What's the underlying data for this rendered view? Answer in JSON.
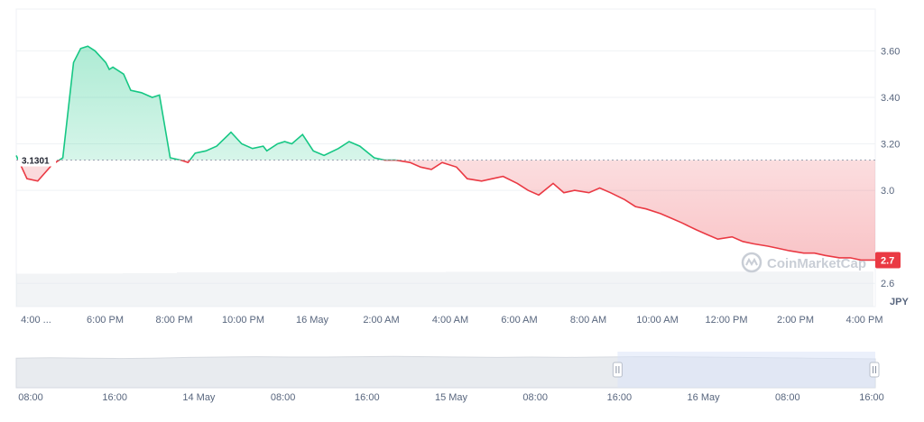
{
  "chart_data": {
    "type": "line",
    "unit": "JPY",
    "baseline": 3.1301,
    "baseline_label": "3.1301",
    "last_price_label": "2.7",
    "ylim": [
      2.5,
      3.78
    ],
    "y_ticks": [
      {
        "value": 3.6,
        "label": "3.60"
      },
      {
        "value": 3.4,
        "label": "3.40"
      },
      {
        "value": 3.2,
        "label": "3.20"
      },
      {
        "value": 3.0,
        "label": "3.0"
      },
      {
        "value": 2.6,
        "label": "2.6"
      }
    ],
    "x_ticks": [
      "4:00 ...",
      "6:00 PM",
      "8:00 PM",
      "10:00 PM",
      "16 May",
      "2:00 AM",
      "4:00 AM",
      "6:00 AM",
      "8:00 AM",
      "10:00 AM",
      "12:00 PM",
      "2:00 PM",
      "4:00 PM"
    ],
    "x_hours": [
      0,
      24
    ],
    "series": [
      {
        "hours": [
          0,
          0.3,
          0.6,
          1.0,
          1.3,
          1.6,
          1.8,
          2.0,
          2.2,
          2.5,
          2.6,
          2.7,
          3.0,
          3.2,
          3.5,
          3.8,
          4.0,
          4.3,
          4.6,
          4.8,
          5.0,
          5.3,
          5.6,
          6.0,
          6.3,
          6.6,
          6.9,
          7.0,
          7.3,
          7.5,
          7.7,
          8.0,
          8.3,
          8.6,
          9.0,
          9.3,
          9.6,
          10.0,
          10.3,
          10.6,
          11.0,
          11.3,
          11.6,
          11.9,
          12.3,
          12.6,
          13.0,
          13.3,
          13.6,
          14.0,
          14.3,
          14.6,
          15.0,
          15.3,
          15.6,
          16.0,
          16.3,
          16.6,
          17.0,
          17.3,
          17.6,
          18.0,
          18.3,
          18.6,
          19.0,
          19.3,
          19.6,
          20.0,
          20.3,
          20.6,
          21.0,
          21.3,
          21.6,
          22.0,
          22.3,
          22.6,
          23.0,
          23.3,
          23.6,
          24.0
        ],
        "values": [
          3.15,
          3.05,
          3.04,
          3.11,
          3.14,
          3.55,
          3.61,
          3.62,
          3.6,
          3.55,
          3.52,
          3.53,
          3.5,
          3.43,
          3.42,
          3.4,
          3.41,
          3.14,
          3.13,
          3.12,
          3.16,
          3.17,
          3.19,
          3.25,
          3.2,
          3.18,
          3.19,
          3.17,
          3.2,
          3.21,
          3.2,
          3.24,
          3.17,
          3.15,
          3.18,
          3.21,
          3.19,
          3.14,
          3.13,
          3.13,
          3.12,
          3.1,
          3.09,
          3.12,
          3.1,
          3.05,
          3.04,
          3.05,
          3.06,
          3.03,
          3.0,
          2.98,
          3.03,
          2.99,
          3.0,
          2.99,
          3.01,
          2.99,
          2.96,
          2.93,
          2.92,
          2.9,
          2.88,
          2.86,
          2.83,
          2.81,
          2.79,
          2.8,
          2.78,
          2.77,
          2.76,
          2.75,
          2.74,
          2.73,
          2.73,
          2.72,
          2.71,
          2.71,
          2.7,
          2.7
        ]
      }
    ],
    "volume": {
      "note_shown": false,
      "levels": [
        0.55,
        0.56,
        0.57,
        0.6,
        0.6,
        0.6,
        0.61,
        0.61,
        0.62,
        0.62,
        0.62,
        0.62,
        0.63,
        0.63,
        0.63,
        0.63
      ]
    },
    "colors": {
      "up": "#16c784",
      "down": "#ea3943",
      "up_fill": "#16c784",
      "down_fill": "#ea3943",
      "grid": "#eff2f5",
      "baseline": "#9aa3b1"
    },
    "watermark": "CoinMarketCap",
    "navigator": {
      "x_ticks": [
        "08:00",
        "16:00",
        "14 May",
        "08:00",
        "16:00",
        "15 May",
        "08:00",
        "16:00",
        "16 May",
        "08:00",
        "16:00"
      ],
      "range_start_fraction": 0.7,
      "range_end_fraction": 1.0,
      "levels": [
        0.82,
        0.83,
        0.82,
        0.81,
        0.82,
        0.84,
        0.85,
        0.86,
        0.85,
        0.85,
        0.86,
        0.87,
        0.86,
        0.85,
        0.84,
        0.85,
        0.84,
        0.85,
        0.86,
        0.86,
        0.85,
        0.84,
        0.83,
        0.82,
        0.81,
        0.8
      ]
    }
  }
}
